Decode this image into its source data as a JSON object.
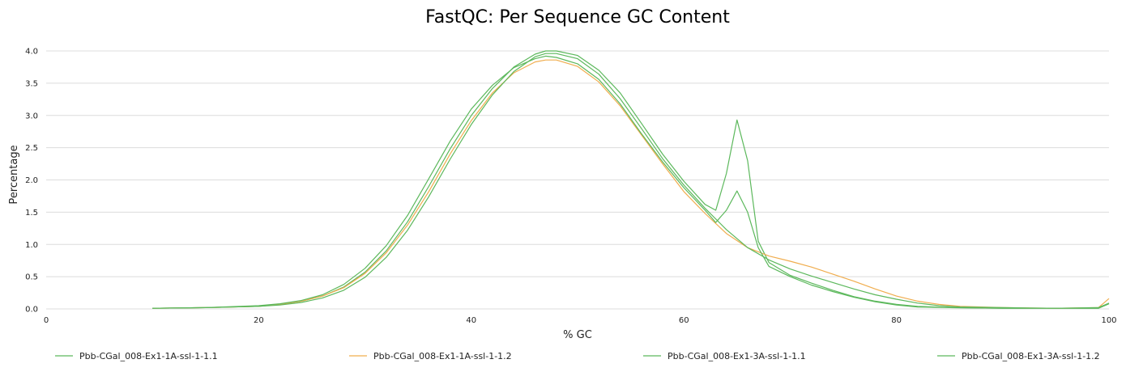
{
  "chart_data": {
    "type": "line",
    "title": "FastQC: Per Sequence GC Content",
    "xlabel": "% GC",
    "ylabel": "Percentage",
    "xlim": [
      0,
      100
    ],
    "ylim": [
      0,
      4.0
    ],
    "x_ticks": [
      0,
      20,
      40,
      60,
      80,
      100
    ],
    "y_ticks": [
      0.0,
      0.5,
      1.0,
      1.5,
      2.0,
      2.5,
      3.0,
      3.5,
      4.0
    ],
    "grid": "horizontal",
    "legend_position": "bottom",
    "series": [
      {
        "name": "Pbb-CGal_008-Ex1-1A-ssl-1-1.1",
        "color": "#5cb85c",
        "points": [
          [
            10,
            0.01
          ],
          [
            15,
            0.02
          ],
          [
            20,
            0.04
          ],
          [
            22,
            0.07
          ],
          [
            24,
            0.12
          ],
          [
            26,
            0.2
          ],
          [
            28,
            0.34
          ],
          [
            30,
            0.57
          ],
          [
            32,
            0.9
          ],
          [
            34,
            1.35
          ],
          [
            36,
            1.9
          ],
          [
            38,
            2.48
          ],
          [
            40,
            3.0
          ],
          [
            42,
            3.42
          ],
          [
            44,
            3.75
          ],
          [
            46,
            3.95
          ],
          [
            47,
            4.0
          ],
          [
            48,
            4.0
          ],
          [
            50,
            3.93
          ],
          [
            52,
            3.7
          ],
          [
            54,
            3.35
          ],
          [
            56,
            2.88
          ],
          [
            58,
            2.4
          ],
          [
            60,
            1.98
          ],
          [
            62,
            1.62
          ],
          [
            63,
            1.53
          ],
          [
            64,
            2.1
          ],
          [
            65,
            2.93
          ],
          [
            66,
            2.3
          ],
          [
            67,
            1.05
          ],
          [
            68,
            0.72
          ],
          [
            70,
            0.52
          ],
          [
            72,
            0.4
          ],
          [
            74,
            0.29
          ],
          [
            76,
            0.19
          ],
          [
            78,
            0.12
          ],
          [
            80,
            0.07
          ],
          [
            82,
            0.04
          ],
          [
            85,
            0.02
          ],
          [
            90,
            0.01
          ],
          [
            99,
            0.01
          ],
          [
            100,
            0.08
          ]
        ]
      },
      {
        "name": "Pbb-CGal_008-Ex1-1A-ssl-1-1.2",
        "color": "#f0ad4e",
        "points": [
          [
            10,
            0.01
          ],
          [
            15,
            0.02
          ],
          [
            20,
            0.04
          ],
          [
            22,
            0.07
          ],
          [
            24,
            0.12
          ],
          [
            26,
            0.2
          ],
          [
            28,
            0.33
          ],
          [
            30,
            0.55
          ],
          [
            32,
            0.87
          ],
          [
            34,
            1.3
          ],
          [
            36,
            1.82
          ],
          [
            38,
            2.4
          ],
          [
            40,
            2.92
          ],
          [
            42,
            3.35
          ],
          [
            44,
            3.66
          ],
          [
            46,
            3.83
          ],
          [
            47,
            3.86
          ],
          [
            48,
            3.86
          ],
          [
            50,
            3.76
          ],
          [
            52,
            3.52
          ],
          [
            54,
            3.15
          ],
          [
            56,
            2.7
          ],
          [
            58,
            2.25
          ],
          [
            60,
            1.82
          ],
          [
            62,
            1.48
          ],
          [
            64,
            1.17
          ],
          [
            66,
            0.95
          ],
          [
            68,
            0.82
          ],
          [
            70,
            0.74
          ],
          [
            72,
            0.65
          ],
          [
            74,
            0.54
          ],
          [
            76,
            0.43
          ],
          [
            78,
            0.31
          ],
          [
            80,
            0.2
          ],
          [
            82,
            0.12
          ],
          [
            84,
            0.07
          ],
          [
            86,
            0.04
          ],
          [
            90,
            0.02
          ],
          [
            95,
            0.01
          ],
          [
            99,
            0.02
          ],
          [
            100,
            0.16
          ]
        ]
      },
      {
        "name": "Pbb-CGal_008-Ex1-3A-ssl-1-1.1",
        "color": "#5cb85c",
        "points": [
          [
            10,
            0.01
          ],
          [
            15,
            0.02
          ],
          [
            20,
            0.05
          ],
          [
            22,
            0.08
          ],
          [
            24,
            0.13
          ],
          [
            26,
            0.22
          ],
          [
            28,
            0.38
          ],
          [
            30,
            0.63
          ],
          [
            32,
            0.98
          ],
          [
            34,
            1.45
          ],
          [
            36,
            2.02
          ],
          [
            38,
            2.6
          ],
          [
            40,
            3.1
          ],
          [
            42,
            3.47
          ],
          [
            44,
            3.74
          ],
          [
            46,
            3.88
          ],
          [
            47,
            3.92
          ],
          [
            48,
            3.9
          ],
          [
            50,
            3.8
          ],
          [
            52,
            3.56
          ],
          [
            54,
            3.18
          ],
          [
            56,
            2.72
          ],
          [
            58,
            2.28
          ],
          [
            60,
            1.88
          ],
          [
            62,
            1.53
          ],
          [
            63,
            1.34
          ],
          [
            64,
            1.53
          ],
          [
            65,
            1.83
          ],
          [
            66,
            1.5
          ],
          [
            67,
            0.95
          ],
          [
            68,
            0.66
          ],
          [
            70,
            0.5
          ],
          [
            72,
            0.37
          ],
          [
            74,
            0.27
          ],
          [
            76,
            0.18
          ],
          [
            78,
            0.11
          ],
          [
            80,
            0.06
          ],
          [
            82,
            0.03
          ],
          [
            85,
            0.02
          ],
          [
            90,
            0.01
          ],
          [
            99,
            0.01
          ],
          [
            100,
            0.08
          ]
        ]
      },
      {
        "name": "Pbb-CGal_008-Ex1-3A-ssl-1-1.2",
        "color": "#5cb85c",
        "points": [
          [
            10,
            0.01
          ],
          [
            15,
            0.02
          ],
          [
            20,
            0.04
          ],
          [
            22,
            0.06
          ],
          [
            24,
            0.1
          ],
          [
            26,
            0.17
          ],
          [
            28,
            0.29
          ],
          [
            30,
            0.49
          ],
          [
            32,
            0.8
          ],
          [
            34,
            1.22
          ],
          [
            36,
            1.74
          ],
          [
            38,
            2.32
          ],
          [
            40,
            2.86
          ],
          [
            42,
            3.32
          ],
          [
            44,
            3.68
          ],
          [
            46,
            3.91
          ],
          [
            47,
            3.96
          ],
          [
            48,
            3.96
          ],
          [
            50,
            3.88
          ],
          [
            52,
            3.64
          ],
          [
            54,
            3.26
          ],
          [
            56,
            2.8
          ],
          [
            58,
            2.33
          ],
          [
            60,
            1.92
          ],
          [
            62,
            1.56
          ],
          [
            64,
            1.23
          ],
          [
            66,
            0.95
          ],
          [
            68,
            0.76
          ],
          [
            70,
            0.62
          ],
          [
            72,
            0.51
          ],
          [
            74,
            0.41
          ],
          [
            76,
            0.31
          ],
          [
            78,
            0.22
          ],
          [
            80,
            0.15
          ],
          [
            82,
            0.09
          ],
          [
            84,
            0.05
          ],
          [
            86,
            0.03
          ],
          [
            90,
            0.02
          ],
          [
            95,
            0.01
          ],
          [
            99,
            0.02
          ],
          [
            100,
            0.09
          ]
        ]
      }
    ]
  }
}
